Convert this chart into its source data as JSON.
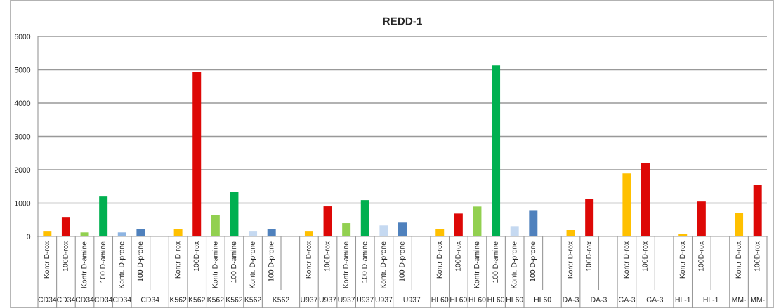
{
  "chart_data": {
    "type": "bar",
    "title": "REDD-1",
    "categories": [
      "Kontr D-rox",
      "100D-rox",
      "Kontr D-amine",
      "100 D-amine",
      "Kontr. D-prone",
      "100 D-prone",
      null,
      "Kontr D-rox",
      "100D-rox",
      "Kontr D-amine",
      "100 D-amine",
      "Kontr. D-prone",
      "100 D-prone",
      null,
      "Kontr D-rox",
      "100D-rox",
      "Kontr D-amine",
      "100 D-amine",
      "Kontr. D-prone",
      "100 D-prone",
      null,
      "Kontr D-rox",
      "100D-rox",
      "Kontr D-amine",
      "100 D-amine",
      "Kontr. D-prone",
      "100 D-prone",
      null,
      "Kontr D-rox",
      "100D-rox",
      null,
      "Kontr D-rox",
      "100D-rox",
      null,
      "Kontr D-rox",
      "100D-rox",
      null,
      "Kontr D-rox",
      "100D-rox"
    ],
    "values": [
      166,
      565,
      120,
      1197,
      120,
      226,
      null,
      211,
      4947,
      648,
      1348,
      166,
      226,
      null,
      166,
      904,
      399,
      1092,
      331,
      415,
      null,
      226,
      687,
      898,
      5132,
      309,
      770,
      null,
      189,
      1132,
      null,
      1887,
      2204,
      null,
      75,
      1049,
      null,
      709,
      1555
    ],
    "colors": [
      "#ffc000",
      "#dd0806",
      "#92d050",
      "#00b050",
      "#8db4e2",
      "#4f81bd",
      null,
      "#ffc000",
      "#dd0806",
      "#92d050",
      "#00b050",
      "#c5d9f1",
      "#4f81bd",
      null,
      "#ffc000",
      "#dd0806",
      "#92d050",
      "#00b050",
      "#c5d9f1",
      "#4f81bd",
      null,
      "#ffc000",
      "#dd0806",
      "#92d050",
      "#00b050",
      "#c5d9f1",
      "#4f81bd",
      null,
      "#ffc000",
      "#dd0806",
      null,
      "#ffc000",
      "#dd0806",
      null,
      "#ffc000",
      "#dd0806",
      null,
      "#ffc000",
      "#dd0806"
    ],
    "annotations": [
      "CD34",
      "CD34",
      "CD34",
      "CD34",
      "CD34",
      "CD34",
      "K562",
      "K562",
      "K562",
      "K562",
      "K562",
      "K562",
      "U937",
      "U937",
      "U937",
      "U937",
      "U937",
      "U937",
      "HL60",
      "HL60",
      "HL60",
      "HL60",
      "HL60",
      "HL60",
      "DA-3",
      "DA-3",
      "GA-3",
      "GA-3",
      "HL-1",
      "HL-1",
      "MM-",
      "MM-"
    ],
    "ylim": [
      0,
      6000
    ],
    "yticks": [
      0,
      1000,
      2000,
      3000,
      4000,
      5000,
      6000
    ],
    "grid": "y",
    "legend": false
  }
}
